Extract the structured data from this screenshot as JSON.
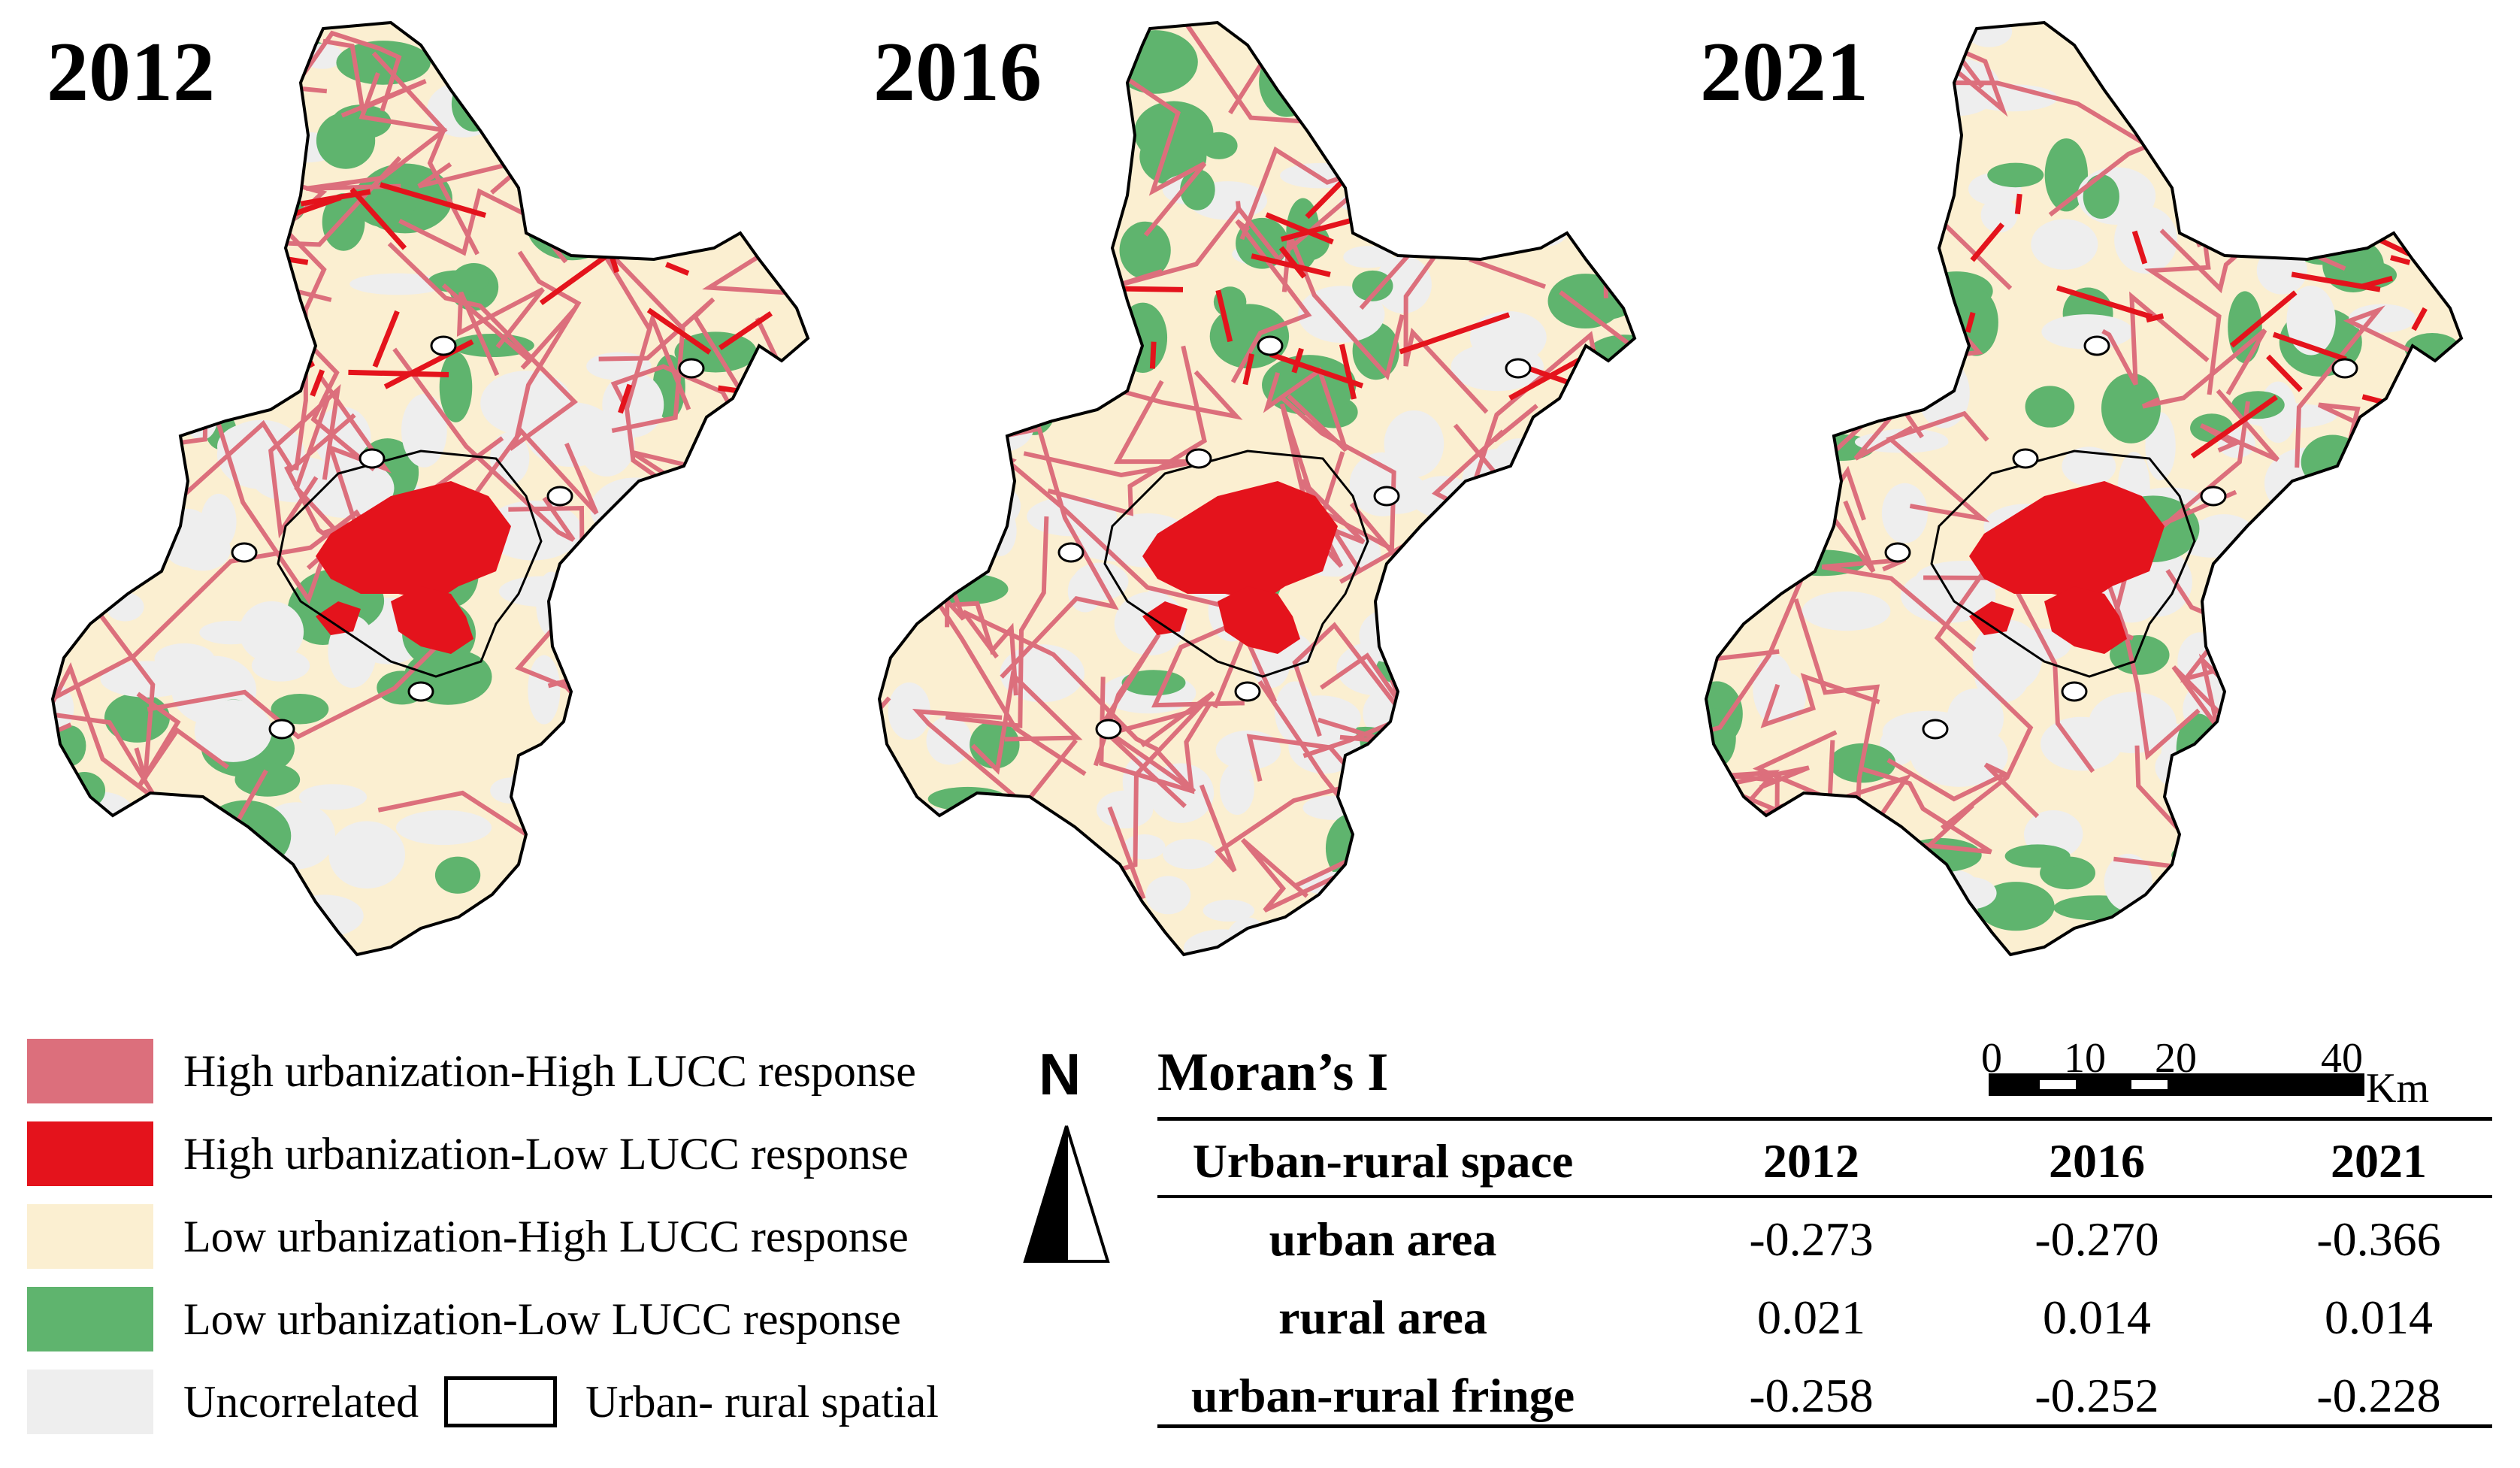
{
  "maps": [
    {
      "year": "2012"
    },
    {
      "year": "2016"
    },
    {
      "year": "2021"
    }
  ],
  "colors": {
    "high_high": "#dc6f7c",
    "high_low": "#e4131c",
    "low_high": "#fbefd1",
    "low_low": "#5fb46e",
    "uncorrelated": "#eeeeee",
    "boundary": "#000000"
  },
  "legend": {
    "items": [
      {
        "label": "High urbanization-High LUCC response",
        "color": "#dc6f7c"
      },
      {
        "label": "High urbanization-Low LUCC response",
        "color": "#e4131c"
      },
      {
        "label": "Low urbanization-High LUCC response",
        "color": "#fbefd1"
      },
      {
        "label": "Low urbanization-Low LUCC response",
        "color": "#5fb46e"
      }
    ],
    "uncorrelated_label": "Uncorrelated",
    "uncorrelated_color": "#eeeeee",
    "spatial_label": "Urban- rural spatial"
  },
  "north_arrow": {
    "letter": "N"
  },
  "scale_bar": {
    "ticks": [
      "0",
      "10",
      "20",
      "40"
    ],
    "unit": "Km"
  },
  "moran": {
    "title": "Moran’s I",
    "header": [
      "Urban-rural space",
      "2012",
      "2016",
      "2021"
    ],
    "rows": [
      {
        "label": "urban area",
        "values": [
          "-0.273",
          "-0.270",
          "-0.366"
        ]
      },
      {
        "label": "rural area",
        "values": [
          "0.021",
          "0.014",
          "0.014"
        ]
      },
      {
        "label": "urban-rural fringe",
        "values": [
          "-0.258",
          "-0.252",
          "-0.228"
        ]
      }
    ]
  }
}
